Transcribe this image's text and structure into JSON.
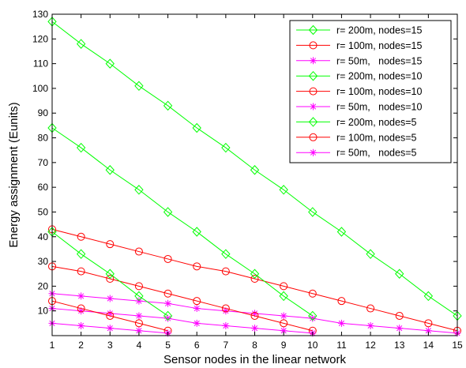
{
  "chart_data": {
    "type": "line",
    "title": "",
    "xlabel": "Sensor nodes in the linear network",
    "ylabel": "Energy assignment (Eunits)",
    "xlim": [
      1,
      15
    ],
    "ylim": [
      0,
      130
    ],
    "xticks": [
      1,
      2,
      3,
      4,
      5,
      6,
      7,
      8,
      9,
      10,
      11,
      12,
      13,
      14,
      15
    ],
    "yticks": [
      10,
      20,
      30,
      40,
      50,
      60,
      70,
      80,
      90,
      100,
      110,
      120,
      130
    ],
    "grid": false,
    "legend_position": "top-right",
    "series": [
      {
        "name": "r= 200m, nodes=15",
        "color": "#00ff00",
        "marker": "diamond",
        "x": [
          1,
          2,
          3,
          4,
          5,
          6,
          7,
          8,
          9,
          10,
          11,
          12,
          13,
          14,
          15
        ],
        "y": [
          127,
          118,
          110,
          101,
          93,
          84,
          76,
          67,
          59,
          50,
          42,
          33,
          25,
          16,
          8
        ]
      },
      {
        "name": "r= 100m, nodes=15",
        "color": "#ff0000",
        "marker": "circle",
        "x": [
          1,
          2,
          3,
          4,
          5,
          6,
          7,
          8,
          9,
          10,
          11,
          12,
          13,
          14,
          15
        ],
        "y": [
          43,
          40,
          37,
          34,
          31,
          28,
          26,
          23,
          20,
          17,
          14,
          11,
          8,
          5,
          2
        ]
      },
      {
        "name": "r= 50m,   nodes=15",
        "color": "#ff00ff",
        "marker": "star",
        "x": [
          1,
          2,
          3,
          4,
          5,
          6,
          7,
          8,
          9,
          10,
          11,
          12,
          13,
          14,
          15
        ],
        "y": [
          17,
          16,
          15,
          14,
          13,
          11,
          10,
          9,
          8,
          7,
          5,
          4,
          3,
          2,
          1
        ]
      },
      {
        "name": "r= 200m, nodes=10",
        "color": "#00ff00",
        "marker": "diamond",
        "x": [
          1,
          2,
          3,
          4,
          5,
          6,
          7,
          8,
          9,
          10
        ],
        "y": [
          84,
          76,
          67,
          59,
          50,
          42,
          33,
          25,
          16,
          8
        ]
      },
      {
        "name": "r= 100m, nodes=10",
        "color": "#ff0000",
        "marker": "circle",
        "x": [
          1,
          2,
          3,
          4,
          5,
          6,
          7,
          8,
          9,
          10
        ],
        "y": [
          28,
          26,
          23,
          20,
          17,
          14,
          11,
          8,
          5,
          2
        ]
      },
      {
        "name": "r= 50m,   nodes=10",
        "color": "#ff00ff",
        "marker": "star",
        "x": [
          1,
          2,
          3,
          4,
          5,
          6,
          7,
          8,
          9,
          10
        ],
        "y": [
          11,
          10,
          9,
          8,
          7,
          5,
          4,
          3,
          2,
          1
        ]
      },
      {
        "name": "r= 200m, nodes=5",
        "color": "#00ff00",
        "marker": "diamond",
        "x": [
          1,
          2,
          3,
          4,
          5
        ],
        "y": [
          42,
          33,
          25,
          16,
          8
        ]
      },
      {
        "name": "r= 100m, nodes=5",
        "color": "#ff0000",
        "marker": "circle",
        "x": [
          1,
          2,
          3,
          4,
          5
        ],
        "y": [
          14,
          11,
          8,
          5,
          2
        ]
      },
      {
        "name": "r= 50m,   nodes=5",
        "color": "#ff00ff",
        "marker": "star",
        "x": [
          1,
          2,
          3,
          4,
          5
        ],
        "y": [
          5,
          4,
          3,
          2,
          1
        ]
      }
    ]
  }
}
